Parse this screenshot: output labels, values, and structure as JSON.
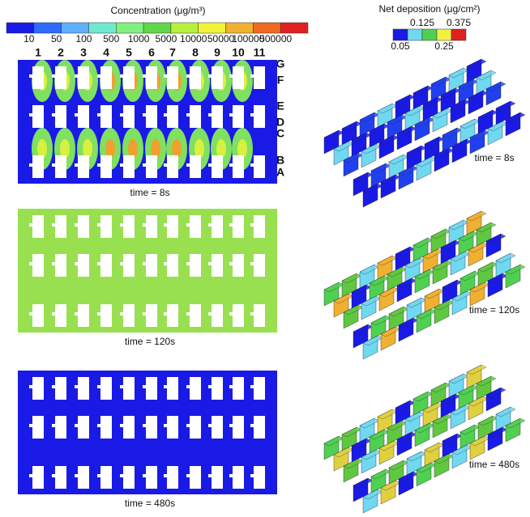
{
  "concentration_legend": {
    "title": "Concentration (μg/m³)",
    "labels": [
      "10",
      "50",
      "100",
      "500",
      "1000",
      "5000",
      "10000",
      "50000",
      "100000",
      "500000"
    ]
  },
  "deposition_legend": {
    "title": "Net deposition (μg/cm²)",
    "labels_bottom": [
      "0.05",
      "0.25"
    ],
    "labels_top": [
      "0.125",
      "0.375"
    ]
  },
  "columns": [
    "1",
    "2",
    "3",
    "4",
    "5",
    "6",
    "7",
    "8",
    "9",
    "10",
    "11"
  ],
  "rows": [
    "G",
    "F",
    "E",
    "D",
    "C",
    "B",
    "A"
  ],
  "left_panels": [
    {
      "time": "time = 8s"
    },
    {
      "time": "time = 120s"
    },
    {
      "time": "time = 480s"
    }
  ],
  "right_panels": [
    {
      "time": "time = 8s"
    },
    {
      "time": "time = 120s"
    },
    {
      "time": "time = 480s"
    }
  ]
}
